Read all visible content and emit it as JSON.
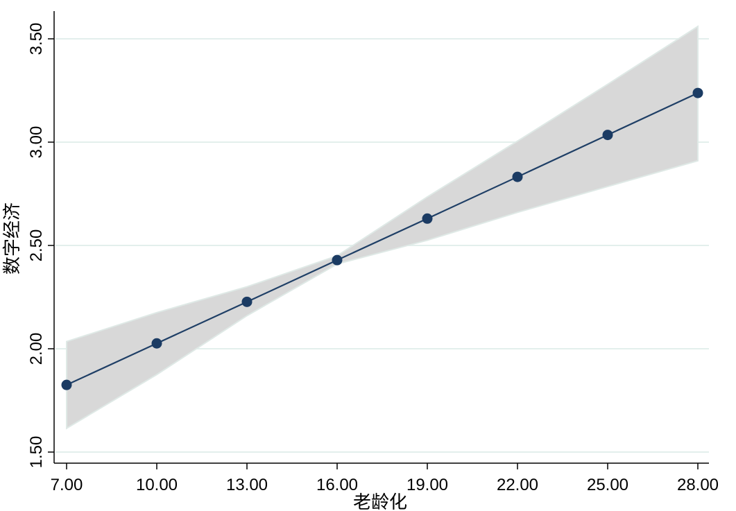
{
  "chart_data": {
    "type": "line",
    "title": "",
    "xlabel": "老龄化",
    "ylabel": "数字经济",
    "x": [
      7,
      10,
      13,
      16,
      19,
      22,
      25,
      28
    ],
    "x_tick_labels": [
      "7.00",
      "10.00",
      "13.00",
      "16.00",
      "19.00",
      "22.00",
      "25.00",
      "28.00"
    ],
    "y_ticks": [
      1.5,
      2.0,
      2.5,
      3.0,
      3.5
    ],
    "y_tick_labels": [
      "1.50",
      "2.00",
      "2.50",
      "3.00",
      "3.50"
    ],
    "xlim": [
      7,
      28
    ],
    "ylim": [
      1.5,
      3.5
    ],
    "grid": true,
    "series": [
      {
        "values": [
          1.825,
          2.026,
          2.227,
          2.429,
          2.63,
          2.832,
          3.035,
          3.238
        ],
        "ci_lower": [
          1.615,
          1.875,
          2.16,
          2.41,
          2.525,
          2.66,
          2.785,
          2.91
        ],
        "ci_upper": [
          2.035,
          2.175,
          2.3,
          2.45,
          2.735,
          3.005,
          3.28,
          3.56
        ]
      }
    ],
    "colors": {
      "line": "#1f3f66",
      "marker": "#1b3b63",
      "band": "#d8d8d8",
      "band_edge": "#dfe9e6",
      "grid": "#e3efec"
    }
  }
}
